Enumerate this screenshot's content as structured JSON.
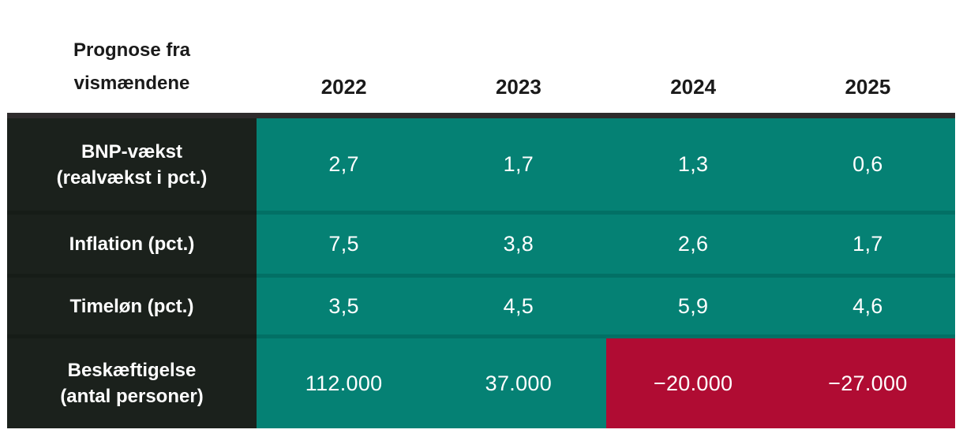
{
  "table": {
    "corner_title": [
      "Prognose fra",
      "vismændene"
    ],
    "columns": [
      "2022",
      "2023",
      "2024",
      "2025"
    ],
    "rows": [
      {
        "label_line1": "BNP-vækst",
        "label_line2": "(realvækst i pct.)",
        "values": [
          "2,7",
          "1,7",
          "1,3",
          "0,6"
        ]
      },
      {
        "label_line1": "Inflation (pct.)",
        "label_line2": "",
        "values": [
          "7,5",
          "3,8",
          "2,6",
          "1,7"
        ]
      },
      {
        "label_line1": "Timeløn (pct.)",
        "label_line2": "",
        "values": [
          "3,5",
          "4,5",
          "5,9",
          "4,6"
        ]
      },
      {
        "label_line1": "Beskæftigelse",
        "label_line2": "(antal personer)",
        "values": [
          "112.000",
          "37.000",
          "−20.000",
          "−27.000"
        ]
      }
    ]
  },
  "colors": {
    "teal": "#058174",
    "red": "#B00C33",
    "dark": "#1B211C",
    "bar": "#2E2B2C",
    "div_teal": "#027065",
    "div_dark": "#161C17",
    "ink": "#1A1A1A",
    "text_light": "#FFFFFF"
  },
  "chart_data": {
    "type": "table",
    "title": "Prognose fra vismændene",
    "categories": [
      "2022",
      "2023",
      "2024",
      "2025"
    ],
    "series": [
      {
        "name": "BNP-vækst (realvækst i pct.)",
        "values": [
          2.7,
          1.7,
          1.3,
          0.6
        ]
      },
      {
        "name": "Inflation (pct.)",
        "values": [
          7.5,
          3.8,
          2.6,
          1.7
        ]
      },
      {
        "name": "Timeløn (pct.)",
        "values": [
          3.5,
          4.5,
          5.9,
          4.6
        ]
      },
      {
        "name": "Beskæftigelse (antal personer)",
        "values": [
          112000,
          37000,
          -20000,
          -27000
        ]
      }
    ],
    "layout": "Dark label column at left; teal value cells; negative employment cells (2024, 2025) highlighted in red; dark bar above table body"
  }
}
